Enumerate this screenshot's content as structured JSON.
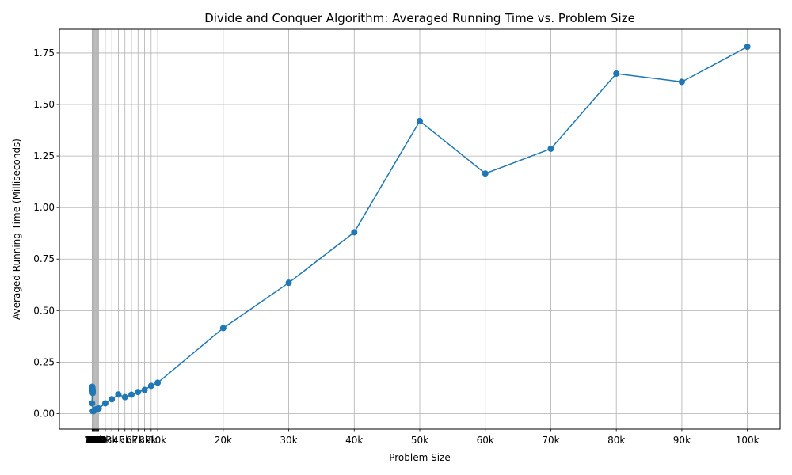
{
  "chart_data": {
    "type": "line",
    "title": "Divide and Conquer Algorithm: Averaged Running Time vs. Problem Size",
    "xlabel": "Problem Size",
    "ylabel": "Averaged Running Time (Milliseconds)",
    "xlim": [
      -5000,
      105000
    ],
    "ylim": [
      -0.075,
      1.865
    ],
    "grid": true,
    "colors": {
      "line": "#1f77b4",
      "grid": "#b0b0b0"
    },
    "x_ticks": [
      {
        "value": 0,
        "label": ""
      },
      {
        "value": 10,
        "label": "10"
      },
      {
        "value": 20,
        "label": "20"
      },
      {
        "value": 30,
        "label": "30"
      },
      {
        "value": 40,
        "label": "40"
      },
      {
        "value": 50,
        "label": "50"
      },
      {
        "value": 60,
        "label": "60"
      },
      {
        "value": 70,
        "label": "70"
      },
      {
        "value": 80,
        "label": "80"
      },
      {
        "value": 90,
        "label": "90"
      },
      {
        "value": 100,
        "label": "100"
      },
      {
        "value": 200,
        "label": "200"
      },
      {
        "value": 300,
        "label": "300"
      },
      {
        "value": 400,
        "label": "400"
      },
      {
        "value": 500,
        "label": "500"
      },
      {
        "value": 600,
        "label": "600"
      },
      {
        "value": 700,
        "label": "700"
      },
      {
        "value": 800,
        "label": "800"
      },
      {
        "value": 900,
        "label": "900"
      },
      {
        "value": 1000,
        "label": "1k"
      },
      {
        "value": 2000,
        "label": "2k"
      },
      {
        "value": 3000,
        "label": "3k"
      },
      {
        "value": 4000,
        "label": "4k"
      },
      {
        "value": 5000,
        "label": "5k"
      },
      {
        "value": 6000,
        "label": "6k"
      },
      {
        "value": 7000,
        "label": "7k"
      },
      {
        "value": 8000,
        "label": "8k"
      },
      {
        "value": 9000,
        "label": "9k"
      },
      {
        "value": 10000,
        "label": "10k"
      },
      {
        "value": 20000,
        "label": "20k"
      },
      {
        "value": 30000,
        "label": "30k"
      },
      {
        "value": 40000,
        "label": "40k"
      },
      {
        "value": 50000,
        "label": "50k"
      },
      {
        "value": 60000,
        "label": "60k"
      },
      {
        "value": 70000,
        "label": "70k"
      },
      {
        "value": 80000,
        "label": "80k"
      },
      {
        "value": 90000,
        "label": "90k"
      },
      {
        "value": 100000,
        "label": "100k"
      }
    ],
    "y_ticks": [
      {
        "value": 0.0,
        "label": "0.00"
      },
      {
        "value": 0.25,
        "label": "0.25"
      },
      {
        "value": 0.5,
        "label": "0.50"
      },
      {
        "value": 0.75,
        "label": "0.75"
      },
      {
        "value": 1.0,
        "label": "1.00"
      },
      {
        "value": 1.25,
        "label": "1.25"
      },
      {
        "value": 1.5,
        "label": "1.50"
      },
      {
        "value": 1.75,
        "label": "1.75"
      }
    ],
    "series": [
      {
        "x": [
          0,
          10,
          20,
          30,
          40,
          50,
          60,
          70,
          80,
          90,
          100,
          200,
          300,
          400,
          500,
          600,
          700,
          800,
          900,
          1000,
          2000,
          3000,
          4000,
          5000,
          6000,
          7000,
          8000,
          9000,
          10000,
          20000,
          30000,
          40000,
          50000,
          60000,
          70000,
          80000,
          90000,
          100000
        ],
        "y": [
          0.05,
          0.13,
          0.13,
          0.125,
          0.12,
          0.12,
          0.115,
          0.11,
          0.11,
          0.1,
          0.012,
          0.012,
          0.015,
          0.018,
          0.02,
          0.02,
          0.022,
          0.022,
          0.025,
          0.025,
          0.05,
          0.07,
          0.093,
          0.08,
          0.092,
          0.105,
          0.115,
          0.135,
          0.15,
          0.415,
          0.635,
          0.88,
          1.42,
          1.165,
          1.285,
          1.65,
          1.61,
          1.78
        ]
      }
    ]
  }
}
